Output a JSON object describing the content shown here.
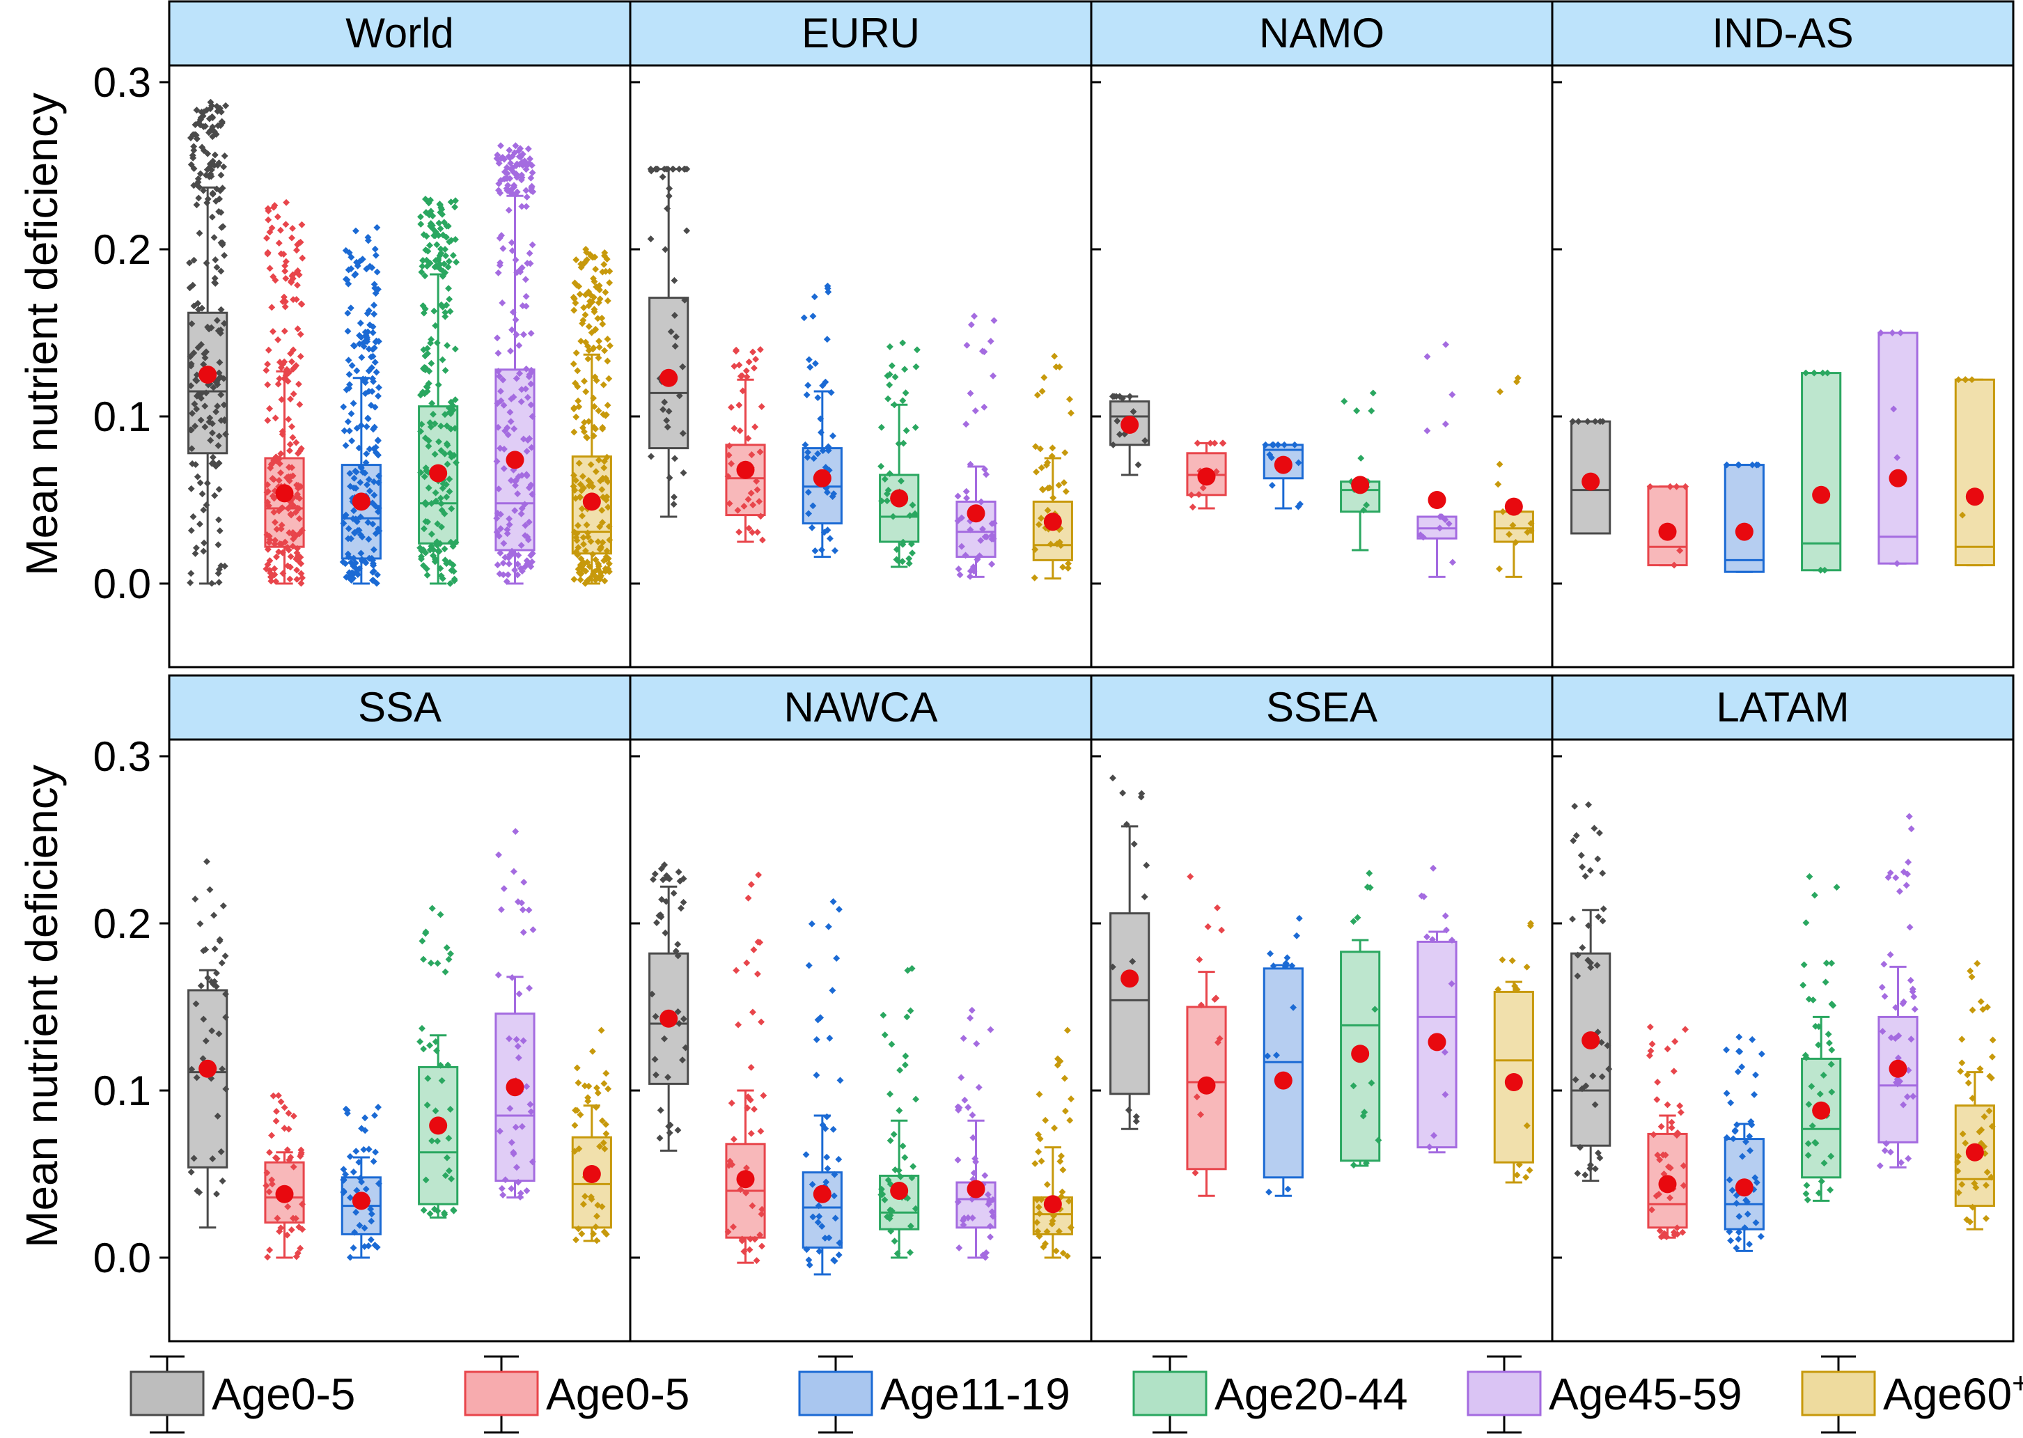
{
  "ylabel": "Mean nutrient deficiency",
  "yticks": [
    "0.0",
    "0.1",
    "0.2",
    "0.3"
  ],
  "ylim": [
    -0.05,
    0.31
  ],
  "colors": {
    "strip": "#bde3fb",
    "mean_dot": "#e8090f",
    "groups": [
      {
        "line": "#4a4a4a",
        "fill": "#bdbdbd"
      },
      {
        "line": "#e8454b",
        "fill": "#f7abae"
      },
      {
        "line": "#1b6ad4",
        "fill": "#a9c6ef"
      },
      {
        "line": "#2aa760",
        "fill": "#b1e2c6"
      },
      {
        "line": "#a46be0",
        "fill": "#dac4f4"
      },
      {
        "line": "#c7990b",
        "fill": "#eedb9e"
      }
    ]
  },
  "legend": [
    {
      "label": "Age0-5"
    },
    {
      "label": "Age0-5"
    },
    {
      "label": "Age11-19"
    },
    {
      "label": "Age20-44"
    },
    {
      "label": "Age45-59"
    },
    {
      "label": "Age60",
      "sup": "+"
    }
  ],
  "chart_data": {
    "type": "box",
    "ylabel": "Mean nutrient deficiency",
    "ylim": [
      -0.05,
      0.31
    ],
    "groups": [
      "Age0-5",
      "Age0-5",
      "Age11-19",
      "Age20-44",
      "Age45-59",
      "Age60+"
    ],
    "panels": [
      {
        "region": "World",
        "points": "many",
        "boxes": [
          {
            "wlo": 0.0,
            "q1": 0.078,
            "med": 0.115,
            "q3": 0.162,
            "whi": 0.237,
            "mean": 0.125,
            "max": 0.288
          },
          {
            "wlo": 0.0,
            "q1": 0.022,
            "med": 0.045,
            "q3": 0.075,
            "whi": 0.127,
            "mean": 0.054,
            "max": 0.228
          },
          {
            "wlo": 0.0,
            "q1": 0.015,
            "med": 0.039,
            "q3": 0.071,
            "whi": 0.123,
            "mean": 0.049,
            "max": 0.213
          },
          {
            "wlo": 0.0,
            "q1": 0.024,
            "med": 0.048,
            "q3": 0.106,
            "whi": 0.185,
            "mean": 0.066,
            "max": 0.23
          },
          {
            "wlo": 0.0,
            "q1": 0.02,
            "med": 0.048,
            "q3": 0.128,
            "whi": 0.232,
            "mean": 0.074,
            "max": 0.262
          },
          {
            "wlo": 0.0,
            "q1": 0.018,
            "med": 0.031,
            "q3": 0.076,
            "whi": 0.137,
            "mean": 0.049,
            "max": 0.2
          }
        ]
      },
      {
        "region": "EURU",
        "points": "mid",
        "boxes": [
          {
            "wlo": 0.04,
            "q1": 0.081,
            "med": 0.114,
            "q3": 0.171,
            "whi": 0.248,
            "mean": 0.123,
            "max": 0.248
          },
          {
            "wlo": 0.025,
            "q1": 0.041,
            "med": 0.063,
            "q3": 0.083,
            "whi": 0.122,
            "mean": 0.068,
            "max": 0.14
          },
          {
            "wlo": 0.016,
            "q1": 0.036,
            "med": 0.058,
            "q3": 0.081,
            "whi": 0.115,
            "mean": 0.063,
            "max": 0.178
          },
          {
            "wlo": 0.01,
            "q1": 0.025,
            "med": 0.04,
            "q3": 0.065,
            "whi": 0.107,
            "mean": 0.051,
            "max": 0.144
          },
          {
            "wlo": 0.004,
            "q1": 0.016,
            "med": 0.031,
            "q3": 0.049,
            "whi": 0.07,
            "mean": 0.042,
            "max": 0.16
          },
          {
            "wlo": 0.003,
            "q1": 0.014,
            "med": 0.023,
            "q3": 0.049,
            "whi": 0.075,
            "mean": 0.037,
            "max": 0.136
          }
        ]
      },
      {
        "region": "NAMO",
        "points": "few",
        "boxes": [
          {
            "wlo": 0.065,
            "q1": 0.083,
            "med": 0.1,
            "q3": 0.109,
            "whi": 0.112,
            "mean": 0.095,
            "max": 0.112
          },
          {
            "wlo": 0.045,
            "q1": 0.053,
            "med": 0.065,
            "q3": 0.078,
            "whi": 0.084,
            "mean": 0.064,
            "max": 0.084
          },
          {
            "wlo": 0.045,
            "q1": 0.063,
            "med": 0.08,
            "q3": 0.083,
            "whi": 0.083,
            "mean": 0.071,
            "max": 0.083
          },
          {
            "wlo": 0.02,
            "q1": 0.043,
            "med": 0.056,
            "q3": 0.061,
            "whi": 0.061,
            "mean": 0.059,
            "max": 0.114
          },
          {
            "wlo": 0.004,
            "q1": 0.027,
            "med": 0.033,
            "q3": 0.04,
            "whi": 0.04,
            "mean": 0.05,
            "max": 0.143
          },
          {
            "wlo": 0.004,
            "q1": 0.025,
            "med": 0.033,
            "q3": 0.043,
            "whi": 0.043,
            "mean": 0.046,
            "max": 0.123
          }
        ]
      },
      {
        "region": "IND-AS",
        "points": "minimal",
        "boxes": [
          {
            "wlo": 0.03,
            "q1": 0.03,
            "med": 0.056,
            "q3": 0.097,
            "whi": 0.097,
            "mean": 0.061,
            "max": 0.097
          },
          {
            "wlo": 0.011,
            "q1": 0.011,
            "med": 0.022,
            "q3": 0.058,
            "whi": 0.058,
            "mean": 0.031,
            "max": 0.058
          },
          {
            "wlo": 0.007,
            "q1": 0.007,
            "med": 0.014,
            "q3": 0.071,
            "whi": 0.071,
            "mean": 0.031,
            "max": 0.071
          },
          {
            "wlo": 0.008,
            "q1": 0.008,
            "med": 0.024,
            "q3": 0.126,
            "whi": 0.126,
            "mean": 0.053,
            "max": 0.126
          },
          {
            "wlo": 0.012,
            "q1": 0.012,
            "med": 0.028,
            "q3": 0.15,
            "whi": 0.15,
            "mean": 0.063,
            "max": 0.15
          },
          {
            "wlo": 0.011,
            "q1": 0.011,
            "med": 0.022,
            "q3": 0.122,
            "whi": 0.122,
            "mean": 0.052,
            "max": 0.122
          }
        ]
      },
      {
        "region": "SSA",
        "points": "mid",
        "boxes": [
          {
            "wlo": 0.018,
            "q1": 0.054,
            "med": 0.111,
            "q3": 0.16,
            "whi": 0.172,
            "mean": 0.113,
            "max": 0.237
          },
          {
            "wlo": 0.0,
            "q1": 0.021,
            "med": 0.036,
            "q3": 0.057,
            "whi": 0.063,
            "mean": 0.038,
            "max": 0.097
          },
          {
            "wlo": 0.0,
            "q1": 0.014,
            "med": 0.031,
            "q3": 0.048,
            "whi": 0.06,
            "mean": 0.034,
            "max": 0.09
          },
          {
            "wlo": 0.024,
            "q1": 0.032,
            "med": 0.063,
            "q3": 0.114,
            "whi": 0.133,
            "mean": 0.079,
            "max": 0.209
          },
          {
            "wlo": 0.036,
            "q1": 0.046,
            "med": 0.085,
            "q3": 0.146,
            "whi": 0.168,
            "mean": 0.102,
            "max": 0.255
          },
          {
            "wlo": 0.01,
            "q1": 0.018,
            "med": 0.044,
            "q3": 0.072,
            "whi": 0.091,
            "mean": 0.05,
            "max": 0.136
          }
        ]
      },
      {
        "region": "NAWCA",
        "points": "mid",
        "boxes": [
          {
            "wlo": 0.064,
            "q1": 0.104,
            "med": 0.14,
            "q3": 0.182,
            "whi": 0.222,
            "mean": 0.143,
            "max": 0.235
          },
          {
            "wlo": -0.003,
            "q1": 0.012,
            "med": 0.04,
            "q3": 0.068,
            "whi": 0.1,
            "mean": 0.047,
            "max": 0.229
          },
          {
            "wlo": -0.01,
            "q1": 0.006,
            "med": 0.03,
            "q3": 0.051,
            "whi": 0.085,
            "mean": 0.038,
            "max": 0.213
          },
          {
            "wlo": 0.0,
            "q1": 0.017,
            "med": 0.027,
            "q3": 0.049,
            "whi": 0.082,
            "mean": 0.04,
            "max": 0.173
          },
          {
            "wlo": 0.0,
            "q1": 0.018,
            "med": 0.035,
            "q3": 0.045,
            "whi": 0.082,
            "mean": 0.041,
            "max": 0.148
          },
          {
            "wlo": 0.0,
            "q1": 0.014,
            "med": 0.026,
            "q3": 0.036,
            "whi": 0.066,
            "mean": 0.032,
            "max": 0.136
          }
        ]
      },
      {
        "region": "SSEA",
        "points": "few",
        "boxes": [
          {
            "wlo": 0.077,
            "q1": 0.098,
            "med": 0.154,
            "q3": 0.206,
            "whi": 0.258,
            "mean": 0.167,
            "max": 0.287
          },
          {
            "wlo": 0.037,
            "q1": 0.053,
            "med": 0.105,
            "q3": 0.15,
            "whi": 0.171,
            "mean": 0.103,
            "max": 0.228
          },
          {
            "wlo": 0.037,
            "q1": 0.048,
            "med": 0.117,
            "q3": 0.173,
            "whi": 0.175,
            "mean": 0.106,
            "max": 0.203
          },
          {
            "wlo": 0.055,
            "q1": 0.058,
            "med": 0.139,
            "q3": 0.183,
            "whi": 0.19,
            "mean": 0.122,
            "max": 0.23
          },
          {
            "wlo": 0.063,
            "q1": 0.066,
            "med": 0.144,
            "q3": 0.189,
            "whi": 0.195,
            "mean": 0.129,
            "max": 0.233
          },
          {
            "wlo": 0.045,
            "q1": 0.057,
            "med": 0.118,
            "q3": 0.159,
            "whi": 0.165,
            "mean": 0.105,
            "max": 0.2
          }
        ]
      },
      {
        "region": "LATAM",
        "points": "mid",
        "boxes": [
          {
            "wlo": 0.046,
            "q1": 0.067,
            "med": 0.1,
            "q3": 0.182,
            "whi": 0.208,
            "mean": 0.13,
            "max": 0.271
          },
          {
            "wlo": 0.012,
            "q1": 0.018,
            "med": 0.032,
            "q3": 0.074,
            "whi": 0.085,
            "mean": 0.044,
            "max": 0.138
          },
          {
            "wlo": 0.004,
            "q1": 0.017,
            "med": 0.032,
            "q3": 0.071,
            "whi": 0.08,
            "mean": 0.042,
            "max": 0.132
          },
          {
            "wlo": 0.034,
            "q1": 0.048,
            "med": 0.077,
            "q3": 0.119,
            "whi": 0.144,
            "mean": 0.088,
            "max": 0.228
          },
          {
            "wlo": 0.054,
            "q1": 0.069,
            "med": 0.103,
            "q3": 0.144,
            "whi": 0.174,
            "mean": 0.113,
            "max": 0.264
          },
          {
            "wlo": 0.017,
            "q1": 0.031,
            "med": 0.047,
            "q3": 0.091,
            "whi": 0.111,
            "mean": 0.063,
            "max": 0.176
          }
        ]
      }
    ]
  }
}
